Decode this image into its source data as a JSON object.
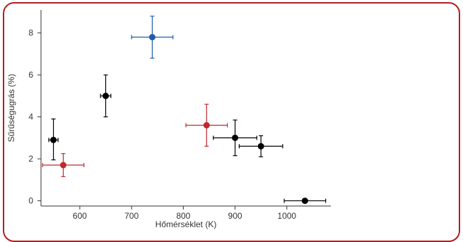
{
  "chart_data": {
    "type": "scatter",
    "title": "",
    "xlabel": "Hőmérséklet (K)",
    "ylabel": "Sűrűségugrás (%)",
    "xlim": [
      525,
      1085
    ],
    "ylim": [
      -0.25,
      9.1
    ],
    "xticks": [
      "600",
      "700",
      "800",
      "900",
      "1000"
    ],
    "yticks": [
      "0",
      "2",
      "4",
      "6",
      "8"
    ],
    "grid": false,
    "legend": "none",
    "colors": {
      "black": "#000000",
      "red": "#c0282d",
      "blue": "#1f5cad"
    },
    "points": [
      {
        "x": 549,
        "y": 2.9,
        "xerr": 9,
        "yerr": [
          0.95,
          1.0
        ],
        "color": "black"
      },
      {
        "x": 568,
        "y": 1.7,
        "xerr": 40,
        "yerr": [
          0.55,
          0.55
        ],
        "color": "red"
      },
      {
        "x": 650,
        "y": 5.0,
        "xerr": 10,
        "yerr": [
          1.0,
          1.0
        ],
        "color": "black"
      },
      {
        "x": 740,
        "y": 7.8,
        "xerr": 40,
        "yerr": [
          1.0,
          1.0
        ],
        "color": "blue"
      },
      {
        "x": 845,
        "y": 3.6,
        "xerr": 40,
        "yerr": [
          1.0,
          1.0
        ],
        "color": "red"
      },
      {
        "x": 900,
        "y": 3.0,
        "xerr": 42,
        "yerr": [
          0.85,
          0.85
        ],
        "color": "black"
      },
      {
        "x": 950,
        "y": 2.6,
        "xerr": 42,
        "yerr": [
          0.5,
          0.5
        ],
        "color": "black"
      },
      {
        "x": 1035,
        "y": 0.0,
        "xerr": 40,
        "yerr": [
          0,
          0
        ],
        "color": "black"
      }
    ]
  }
}
